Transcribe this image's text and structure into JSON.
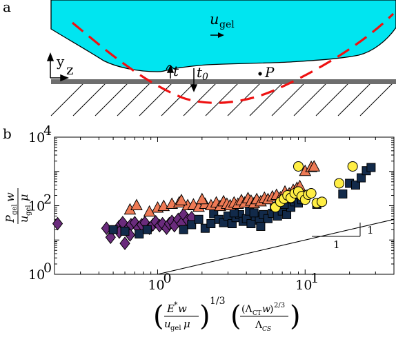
{
  "panels": {
    "a": {
      "label": "a",
      "velocity_symbol": "u",
      "velocity_subscript": "gel",
      "axis_y": "y",
      "axis_z": "z",
      "thickness_label": "t",
      "thickness0_symbol": "t",
      "thickness0_subscript": "0",
      "point_label": "P",
      "colors": {
        "gel": "#00e5f0",
        "contact_curve": "#ee1111",
        "substrate": "#6e6e6e"
      }
    },
    "b": {
      "label": "b",
      "ylabel_num_P": "P",
      "ylabel_num_sub": "gel",
      "ylabel_num_w": "w",
      "ylabel_den_u": "u",
      "ylabel_den_sub": "gel",
      "ylabel_den_mu": "μ",
      "xlabel_left": "(E*w / u_gel μ)^(1/3)",
      "xlabel_right": "((Λ_CT w)^(2/3) / Λ_CS)",
      "xlabel_power": "1/3",
      "slope_label_h": "1",
      "slope_label_v": "1"
    }
  },
  "chart_data": {
    "type": "scatter",
    "xscale": "log",
    "yscale": "log",
    "xlim": [
      0.2,
      40
    ],
    "ylim": [
      1,
      10000
    ],
    "xticks": [
      {
        "value": 1,
        "base": "10",
        "exp": "0"
      },
      {
        "value": 10,
        "base": "10",
        "exp": "1"
      }
    ],
    "yticks": [
      {
        "value": 1,
        "base": "10",
        "exp": "0"
      },
      {
        "value": 100,
        "base": "10",
        "exp": "2"
      },
      {
        "value": 10000,
        "base": "10",
        "exp": "4"
      }
    ],
    "grid": false,
    "series": [
      {
        "marker": "diamond",
        "color": "#6a2b7c",
        "points": [
          [
            0.21,
            30
          ],
          [
            0.45,
            22
          ],
          [
            0.48,
            12
          ],
          [
            0.55,
            25
          ],
          [
            0.58,
            32
          ],
          [
            0.62,
            20
          ],
          [
            0.66,
            28
          ],
          [
            0.7,
            32
          ],
          [
            0.74,
            22
          ],
          [
            0.78,
            28
          ],
          [
            0.82,
            32
          ],
          [
            0.88,
            22
          ],
          [
            0.93,
            28
          ],
          [
            0.97,
            34
          ],
          [
            1.03,
            26
          ],
          [
            1.08,
            30
          ],
          [
            1.15,
            22
          ],
          [
            1.2,
            30
          ],
          [
            1.25,
            35
          ],
          [
            1.3,
            26
          ],
          [
            1.38,
            40
          ],
          [
            1.45,
            30
          ],
          [
            1.5,
            55
          ],
          [
            1.6,
            38
          ],
          [
            1.7,
            45
          ],
          [
            0.55,
            17
          ],
          [
            0.65,
            14
          ],
          [
            0.6,
            8
          ]
        ]
      },
      {
        "marker": "square",
        "color": "#122a4a",
        "points": [
          [
            0.5,
            20
          ],
          [
            0.6,
            18
          ],
          [
            0.75,
            15
          ],
          [
            0.85,
            20
          ],
          [
            1.5,
            20
          ],
          [
            1.7,
            28
          ],
          [
            1.9,
            40
          ],
          [
            2.1,
            22
          ],
          [
            2.3,
            30
          ],
          [
            2.4,
            58
          ],
          [
            2.6,
            40
          ],
          [
            2.8,
            32
          ],
          [
            3.0,
            50
          ],
          [
            3.2,
            30
          ],
          [
            3.4,
            45
          ],
          [
            3.6,
            55
          ],
          [
            3.8,
            35
          ],
          [
            4.0,
            42
          ],
          [
            4.3,
            30
          ],
          [
            4.6,
            50
          ],
          [
            4.9,
            38
          ],
          [
            5.2,
            55
          ],
          [
            5.6,
            42
          ],
          [
            6.0,
            60
          ],
          [
            6.5,
            50
          ],
          [
            7.0,
            70
          ],
          [
            7.5,
            55
          ],
          [
            8.0,
            90
          ],
          [
            8.5,
            130
          ],
          [
            9.0,
            120
          ],
          [
            9.5,
            150
          ],
          [
            4.2,
            70
          ],
          [
            5.0,
            25
          ],
          [
            3.3,
            62
          ],
          [
            7.2,
            110
          ],
          [
            12,
            110
          ],
          [
            18,
            220
          ],
          [
            20,
            450
          ],
          [
            22,
            400
          ],
          [
            24,
            650
          ],
          [
            26,
            1050
          ],
          [
            28,
            1300
          ],
          [
            4.5,
            62
          ],
          [
            6.2,
            95
          ],
          [
            7.8,
            160
          ]
        ]
      },
      {
        "marker": "triangle",
        "color": "#ee7a55",
        "points": [
          [
            1.0,
            85
          ],
          [
            1.1,
            95
          ],
          [
            1.25,
            110
          ],
          [
            1.4,
            120
          ],
          [
            1.6,
            100
          ],
          [
            1.75,
            105
          ],
          [
            1.9,
            90
          ],
          [
            2.1,
            110
          ],
          [
            2.3,
            100
          ],
          [
            2.5,
            120
          ],
          [
            2.65,
            95
          ],
          [
            2.8,
            130
          ],
          [
            2.95,
            110
          ],
          [
            3.1,
            100
          ],
          [
            3.3,
            120
          ],
          [
            3.5,
            110
          ],
          [
            3.7,
            140
          ],
          [
            3.9,
            120
          ],
          [
            4.1,
            160
          ],
          [
            4.3,
            135
          ],
          [
            4.5,
            115
          ],
          [
            4.7,
            150
          ],
          [
            5.0,
            130
          ],
          [
            5.3,
            165
          ],
          [
            5.6,
            150
          ],
          [
            6.0,
            180
          ],
          [
            6.4,
            200
          ],
          [
            6.8,
            170
          ],
          [
            7.3,
            250
          ],
          [
            7.8,
            220
          ],
          [
            8.3,
            280
          ],
          [
            8.8,
            320
          ],
          [
            9.2,
            360
          ],
          [
            10,
            1000
          ],
          [
            11,
            1300
          ],
          [
            11.5,
            1350
          ],
          [
            0.65,
            75
          ],
          [
            0.72,
            100
          ],
          [
            0.88,
            65
          ],
          [
            1.45,
            140
          ],
          [
            2.0,
            150
          ]
        ]
      },
      {
        "marker": "circle",
        "color": "#ffee44",
        "points": [
          [
            6.3,
            90
          ],
          [
            6.8,
            130
          ],
          [
            7.2,
            160
          ],
          [
            7.6,
            200
          ],
          [
            8.0,
            170
          ],
          [
            8.5,
            230
          ],
          [
            9.0,
            260
          ],
          [
            9.5,
            190
          ],
          [
            10,
            150
          ],
          [
            10.5,
            210
          ],
          [
            11,
            230
          ],
          [
            12,
            120
          ],
          [
            13,
            130
          ],
          [
            9.0,
            1400
          ],
          [
            17,
            450
          ],
          [
            21,
            1400
          ]
        ]
      }
    ],
    "reference_line": {
      "x": [
        1,
        40
      ],
      "y": [
        1,
        40
      ],
      "slope": 1
    }
  }
}
